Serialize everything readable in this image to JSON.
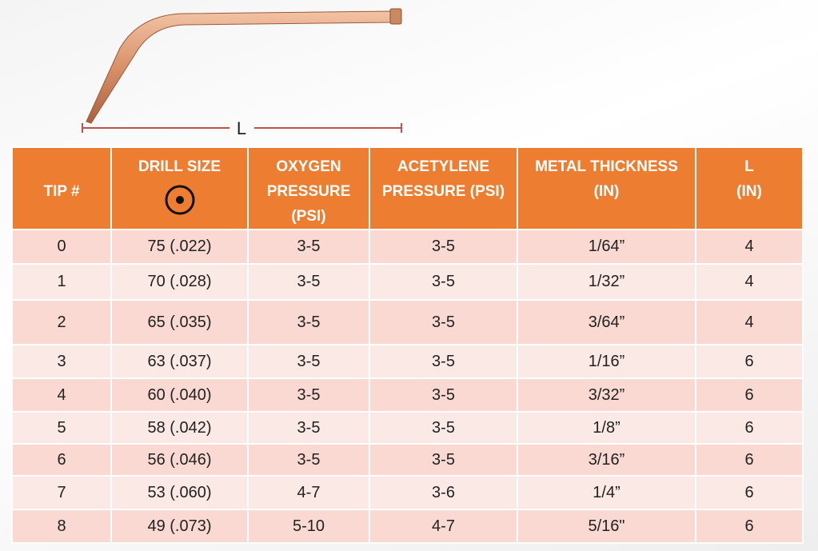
{
  "diagram": {
    "dimension_label": "L"
  },
  "table": {
    "header": [
      [
        "TIP #"
      ],
      [
        "DRILL SIZE"
      ],
      [
        "OXYGEN",
        "PRESSURE",
        "(PSI)"
      ],
      [
        "ACETYLENE",
        "PRESSURE (PSI)"
      ],
      [
        "METAL THICKNESS",
        "(IN)"
      ],
      [
        "L",
        "(IN)"
      ]
    ],
    "rows": [
      [
        "0",
        "75 (.022)",
        "3-5",
        "3-5",
        "1/64”",
        "4"
      ],
      [
        "1",
        "70 (.028)",
        "3-5",
        "3-5",
        "1/32”",
        "4"
      ],
      [
        "2",
        "65 (.035)",
        "3-5",
        "3-5",
        "3/64”",
        "4"
      ],
      [
        "3",
        "63 (.037)",
        "3-5",
        "3-5",
        "1/16”",
        "6"
      ],
      [
        "4",
        "60 (.040)",
        "3-5",
        "3-5",
        "3/32”",
        "6"
      ],
      [
        "5",
        "58 (.042)",
        "3-5",
        "3-5",
        "1/8”",
        "6"
      ],
      [
        "6",
        "56 (.046)",
        "3-5",
        "3-5",
        "3/16”",
        "6"
      ],
      [
        "7",
        "53 (.060)",
        "4-7",
        "3-6",
        "1/4”",
        "6"
      ],
      [
        "8",
        "49 (.073)",
        "5-10",
        "4-7",
        "5/16\"",
        "6"
      ]
    ]
  }
}
